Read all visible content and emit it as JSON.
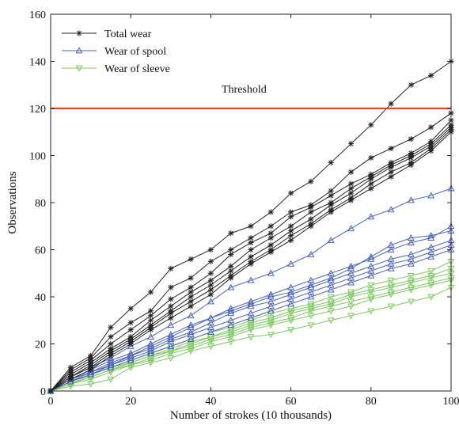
{
  "chart_data": {
    "type": "line",
    "xlabel": "Number of strokes (10 thousands)",
    "ylabel": "Observations",
    "xlim": [
      0,
      100
    ],
    "ylim": [
      0,
      160
    ],
    "x_ticks": [
      0,
      20,
      40,
      60,
      80,
      100
    ],
    "y_ticks": [
      0,
      20,
      40,
      60,
      80,
      100,
      120,
      140,
      160
    ],
    "grid": false,
    "legend_position": "top-left",
    "threshold": {
      "label": "Threshold",
      "value": 120,
      "color": "#e8412b"
    },
    "x": [
      0,
      5,
      10,
      15,
      20,
      25,
      30,
      35,
      40,
      45,
      50,
      55,
      60,
      65,
      70,
      75,
      80,
      85,
      90,
      95,
      100
    ],
    "groups": [
      {
        "name": "Total wear",
        "marker": "asterisk",
        "color": "#222222",
        "series": [
          [
            0,
            10,
            15,
            27,
            35,
            42,
            52,
            56,
            60,
            67,
            70,
            76,
            84,
            89,
            97,
            105,
            113,
            122,
            130,
            134,
            140
          ],
          [
            0,
            9,
            14,
            23,
            29,
            34,
            44,
            48,
            55,
            60,
            65,
            70,
            76,
            79,
            85,
            93,
            99,
            103,
            107,
            112,
            118
          ],
          [
            0,
            8,
            13,
            20,
            26,
            32,
            39,
            44,
            50,
            58,
            63,
            67,
            74,
            78,
            83,
            88,
            92,
            97,
            101,
            106,
            115
          ],
          [
            0,
            7,
            12,
            18,
            23,
            30,
            36,
            42,
            47,
            53,
            60,
            65,
            70,
            76,
            80,
            86,
            91,
            96,
            100,
            105,
            113
          ],
          [
            0,
            6,
            11,
            17,
            22,
            28,
            34,
            40,
            45,
            51,
            57,
            62,
            68,
            73,
            79,
            84,
            90,
            95,
            99,
            104,
            112
          ],
          [
            0,
            6,
            10,
            16,
            21,
            27,
            33,
            38,
            43,
            49,
            55,
            60,
            66,
            71,
            77,
            82,
            88,
            93,
            97,
            103,
            111
          ],
          [
            0,
            5,
            9,
            15,
            20,
            26,
            31,
            36,
            41,
            48,
            54,
            59,
            64,
            70,
            76,
            81,
            86,
            91,
            96,
            102,
            110
          ]
        ]
      },
      {
        "name": "Wear of spool",
        "marker": "triangle-up",
        "color": "#4a62b8",
        "series": [
          [
            0,
            6,
            10,
            14,
            19,
            23,
            28,
            32,
            38,
            44,
            47,
            50,
            54,
            58,
            64,
            69,
            74,
            77,
            81,
            83,
            86
          ],
          [
            0,
            5,
            9,
            13,
            16,
            20,
            24,
            28,
            31,
            35,
            38,
            41,
            44,
            47,
            50,
            53,
            56,
            60,
            63,
            65,
            70
          ],
          [
            0,
            5,
            8,
            12,
            15,
            19,
            23,
            27,
            31,
            34,
            37,
            40,
            42,
            45,
            48,
            52,
            57,
            62,
            65,
            66,
            68
          ],
          [
            0,
            4,
            8,
            11,
            15,
            18,
            22,
            25,
            29,
            33,
            36,
            38,
            41,
            44,
            47,
            50,
            53,
            56,
            58,
            61,
            64
          ],
          [
            0,
            4,
            7,
            11,
            14,
            17,
            21,
            24,
            27,
            30,
            33,
            36,
            39,
            42,
            45,
            48,
            51,
            54,
            56,
            59,
            62
          ],
          [
            0,
            4,
            7,
            10,
            13,
            16,
            19,
            22,
            25,
            28,
            31,
            34,
            37,
            40,
            43,
            46,
            49,
            52,
            54,
            57,
            60
          ]
        ]
      },
      {
        "name": "Wear of sleeve",
        "marker": "triangle-down",
        "color": "#7cc860",
        "series": [
          [
            0,
            4,
            7,
            10,
            13,
            16,
            19,
            22,
            25,
            27,
            30,
            33,
            35,
            37,
            40,
            42,
            45,
            47,
            49,
            51,
            55
          ],
          [
            0,
            3,
            7,
            10,
            12,
            15,
            18,
            21,
            23,
            26,
            29,
            31,
            34,
            36,
            38,
            41,
            43,
            45,
            47,
            49,
            52
          ],
          [
            0,
            3,
            6,
            9,
            12,
            15,
            17,
            20,
            23,
            25,
            28,
            30,
            33,
            35,
            37,
            40,
            42,
            44,
            46,
            48,
            50
          ],
          [
            0,
            3,
            6,
            9,
            11,
            14,
            17,
            19,
            22,
            24,
            27,
            29,
            31,
            34,
            36,
            38,
            40,
            42,
            44,
            46,
            48
          ],
          [
            0,
            3,
            5,
            8,
            11,
            13,
            16,
            18,
            21,
            23,
            26,
            28,
            30,
            32,
            34,
            36,
            39,
            41,
            43,
            45,
            47
          ],
          [
            0,
            2,
            3,
            5,
            10,
            12,
            14,
            17,
            19,
            21,
            23,
            24,
            26,
            28,
            30,
            32,
            34,
            36,
            38,
            40,
            44
          ]
        ]
      }
    ]
  }
}
